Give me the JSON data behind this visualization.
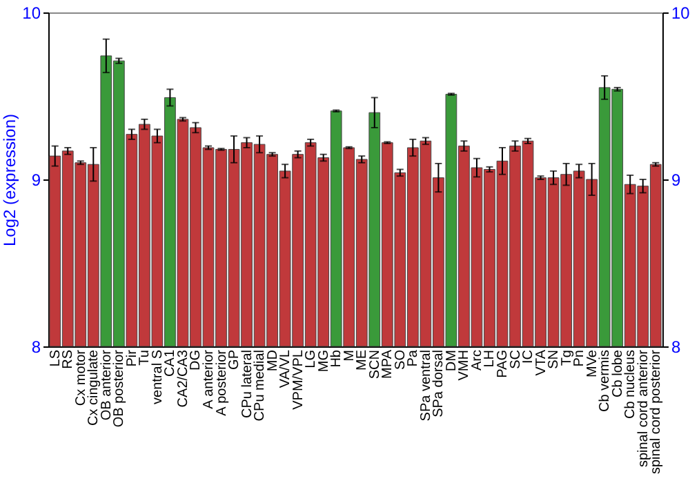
{
  "chart_data": {
    "type": "bar",
    "ylabel": "Log2 (expression)",
    "categories": [
      "LS",
      "RS",
      "Cx motor",
      "Cx cingulate",
      "OB anterior",
      "OB posterior",
      "Pir",
      "Tu",
      "ventral S",
      "CA1",
      "CA2/CA3",
      "DG",
      "A anterior",
      "A posterior",
      "GP",
      "CPu lateral",
      "CPu medial",
      "MD",
      "VA/VL",
      "VPM/VPL",
      "LG",
      "MG",
      "Hb",
      "M",
      "ME",
      "SCN",
      "MPA",
      "SO",
      "Pa",
      "SPa ventral",
      "SPa dorsal",
      "DM",
      "VMH",
      "Arc",
      "LH",
      "PAG",
      "SC",
      "IC",
      "VTA",
      "SN",
      "Tg",
      "Pn",
      "MVe",
      "Cb vermis",
      "Cb lobe",
      "Cb nucleus",
      "spinal cord anterior",
      "spinal cord posterior"
    ],
    "values": [
      9.14,
      9.17,
      9.1,
      9.09,
      9.74,
      9.71,
      9.27,
      9.33,
      9.26,
      9.49,
      9.36,
      9.31,
      9.19,
      9.18,
      9.18,
      9.22,
      9.21,
      9.15,
      9.05,
      9.15,
      9.22,
      9.13,
      9.41,
      9.19,
      9.12,
      9.4,
      9.22,
      9.04,
      9.19,
      9.23,
      9.01,
      9.51,
      9.2,
      9.07,
      9.06,
      9.11,
      9.2,
      9.23,
      9.01,
      9.01,
      9.03,
      9.05,
      9.0,
      9.55,
      9.54,
      8.97,
      8.96,
      9.09
    ],
    "errors": [
      0.06,
      0.02,
      0.01,
      0.1,
      0.1,
      0.015,
      0.03,
      0.03,
      0.04,
      0.05,
      0.01,
      0.03,
      0.01,
      0.005,
      0.08,
      0.03,
      0.05,
      0.01,
      0.04,
      0.02,
      0.02,
      0.02,
      0.005,
      0.005,
      0.02,
      0.09,
      0.005,
      0.02,
      0.05,
      0.02,
      0.085,
      0.005,
      0.03,
      0.055,
      0.015,
      0.08,
      0.03,
      0.015,
      0.01,
      0.04,
      0.065,
      0.04,
      0.095,
      0.07,
      0.01,
      0.055,
      0.04,
      0.01
    ],
    "colors": [
      "#c0393b",
      "#c0393b",
      "#c0393b",
      "#c0393b",
      "#3a9a3a",
      "#3a9a3a",
      "#c0393b",
      "#c0393b",
      "#c0393b",
      "#3a9a3a",
      "#c0393b",
      "#c0393b",
      "#c0393b",
      "#c0393b",
      "#c0393b",
      "#c0393b",
      "#c0393b",
      "#c0393b",
      "#c0393b",
      "#c0393b",
      "#c0393b",
      "#c0393b",
      "#3a9a3a",
      "#c0393b",
      "#c0393b",
      "#3a9a3a",
      "#c0393b",
      "#c0393b",
      "#c0393b",
      "#c0393b",
      "#c0393b",
      "#3a9a3a",
      "#c0393b",
      "#c0393b",
      "#c0393b",
      "#c0393b",
      "#c0393b",
      "#c0393b",
      "#c0393b",
      "#c0393b",
      "#c0393b",
      "#c0393b",
      "#c0393b",
      "#3a9a3a",
      "#3a9a3a",
      "#c0393b",
      "#c0393b",
      "#c0393b"
    ],
    "ylim": [
      8,
      10
    ],
    "yticks": [
      8,
      9,
      10
    ],
    "y2lim": [
      8,
      10
    ],
    "y2ticks": [
      8,
      9,
      10
    ],
    "grid": false
  }
}
